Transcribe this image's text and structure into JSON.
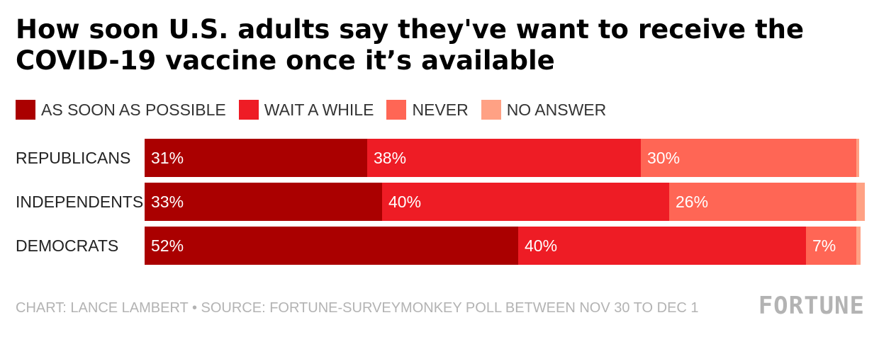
{
  "title": "How soon U.S. adults say they've want to receive the COVID-19 vaccine once it’s available",
  "footer": "CHART: LANCE LAMBERT • SOURCE: FORTUNE-SURVEYMONKEY POLL BETWEEN NOV 30 TO DEC 1",
  "brand": "FORTUNE",
  "chart_data": {
    "type": "bar",
    "orientation": "horizontal",
    "stacked": true,
    "title": "How soon U.S. adults say they've want to receive the COVID-19 vaccine once it’s available",
    "legend_position": "top-left",
    "categories": [
      "REPUBLICANS",
      "INDEPENDENTS",
      "DEMOCRATS"
    ],
    "series": [
      {
        "name": "AS SOON AS POSSIBLE",
        "color": "#aa0000",
        "values": [
          31,
          33,
          52
        ],
        "labels": [
          "31%",
          "33%",
          "52%"
        ]
      },
      {
        "name": "WAIT A WHILE",
        "color": "#ee1c25",
        "values": [
          38,
          40,
          40
        ],
        "labels": [
          "38%",
          "40%",
          "40%"
        ]
      },
      {
        "name": "NEVER",
        "color": "#ff6655",
        "values": [
          30,
          26,
          7
        ],
        "labels": [
          "30%",
          "26%",
          "7%"
        ]
      },
      {
        "name": "NO ANSWER",
        "color": "#ffa184",
        "values": [
          0.4,
          1.2,
          0.6
        ],
        "labels": [
          "",
          "",
          ""
        ]
      }
    ],
    "xlim": [
      0,
      100
    ],
    "grid": false
  }
}
